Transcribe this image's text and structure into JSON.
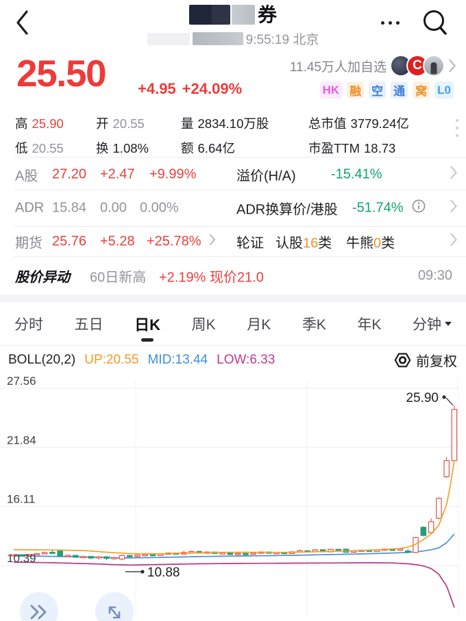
{
  "header": {
    "title_suffix": "券",
    "subtitle_time": "9:55:19 北京"
  },
  "quote": {
    "price": "25.50",
    "change": "+4.95",
    "change_pct": "+24.09%",
    "watchers": "11.45万人加自选",
    "avatar_letter": "C",
    "badges": [
      {
        "label": "HK",
        "fg": "#df5fe0",
        "bg": "#fbeafc"
      },
      {
        "label": "融",
        "fg": "#f0922e",
        "bg": "#fdf2e3"
      },
      {
        "label": "空",
        "fg": "#3f7fd6",
        "bg": "#e8f1fc"
      },
      {
        "label": "通",
        "fg": "#3f7fd6",
        "bg": "#e8f1fc"
      },
      {
        "label": "窝",
        "fg": "#f0922e",
        "bg": "#fdf2e3"
      },
      {
        "label": "L0",
        "fg": "#3fa0e8",
        "bg": "#e6f3fd"
      }
    ]
  },
  "stats": {
    "cells": [
      {
        "label": "高",
        "value": "25.90",
        "tone": "red"
      },
      {
        "label": "开",
        "value": "20.55",
        "tone": "gray"
      },
      {
        "label": "量",
        "value": "2834.10万股",
        "tone": "dark"
      },
      {
        "label": "总市值",
        "value": "3779.24亿",
        "tone": "dark"
      },
      {
        "label": "低",
        "value": "20.55",
        "tone": "gray"
      },
      {
        "label": "换",
        "value": "1.08%",
        "tone": "dark"
      },
      {
        "label": "额",
        "value": "6.64亿",
        "tone": "dark"
      },
      {
        "label": "市盈TTM",
        "value": "18.73",
        "tone": "dark"
      }
    ]
  },
  "rows": {
    "a_share": {
      "label": "A股",
      "price": "27.20",
      "change": "+2.47",
      "pct": "+9.99%",
      "right_label": "溢价(H/A)",
      "right_value": "-15.41%"
    },
    "adr": {
      "label": "ADR",
      "price": "15.84",
      "change": "0.00",
      "pct": "0.00%",
      "right_label": "ADR换算价/港股",
      "right_value": "-51.74%"
    },
    "futures": {
      "label": "期货",
      "price": "25.76",
      "change": "+5.28",
      "pct": "+25.78%",
      "w1": "轮证",
      "w2a": "认股",
      "w2n": "16",
      "w2b": "类",
      "w3a": "牛熊",
      "w3n": "0",
      "w3b": "类"
    },
    "alert": {
      "title": "股价异动",
      "tag": "60日新高",
      "detail": "+2.19% 现价21.0",
      "time": "09:30"
    }
  },
  "tabs": {
    "items": [
      "分时",
      "五日",
      "日K",
      "周K",
      "月K",
      "季K",
      "年K",
      "分钟"
    ],
    "active": 2,
    "dropdown_index": 7
  },
  "indicator": {
    "name": "BOLL(20,2)",
    "up": "UP:20.55",
    "mid": "MID:13.44",
    "low": "LOW:6.33",
    "adjust": "前复权"
  },
  "chart_data": {
    "type": "candlestick",
    "title": "日K candlestick with BOLL(20,2) bands",
    "y_ticks": [
      27.56,
      21.84,
      16.11,
      10.39
    ],
    "ylim": [
      6.0,
      27.56
    ],
    "boll_current": {
      "up": 20.55,
      "mid": 13.44,
      "low": 6.33
    },
    "high_label": {
      "text": "25.90",
      "price": 25.9
    },
    "low_label": {
      "text": "10.88",
      "price": 10.88,
      "bar": 14
    },
    "today": {
      "open": 20.55,
      "high": 25.9,
      "low": 20.55,
      "close": 25.5
    },
    "candles": [
      [
        11.38,
        11.44,
        11.5,
        11.33
      ],
      [
        11.44,
        11.36,
        11.48,
        11.3
      ],
      [
        11.36,
        11.47,
        11.52,
        11.31
      ],
      [
        11.47,
        11.55,
        11.62,
        11.42
      ],
      [
        11.55,
        11.64,
        11.74,
        11.5
      ],
      [
        11.68,
        11.65,
        11.92,
        11.52
      ],
      [
        11.9,
        11.3,
        11.95,
        11.24
      ],
      [
        11.3,
        11.38,
        11.44,
        11.24
      ],
      [
        11.38,
        11.2,
        11.42,
        11.12
      ],
      [
        11.2,
        11.27,
        11.34,
        11.1
      ],
      [
        11.27,
        11.12,
        11.3,
        11.0
      ],
      [
        11.12,
        11.24,
        11.3,
        10.95
      ],
      [
        11.24,
        11.08,
        11.28,
        10.92
      ],
      [
        11.08,
        11.16,
        11.24,
        10.96
      ],
      [
        11.02,
        11.36,
        11.42,
        10.88
      ],
      [
        11.36,
        11.26,
        11.44,
        11.08
      ],
      [
        11.26,
        11.4,
        11.48,
        11.18
      ],
      [
        11.4,
        11.46,
        11.54,
        11.34
      ],
      [
        11.46,
        11.36,
        11.5,
        11.28
      ],
      [
        11.36,
        11.5,
        11.56,
        11.32
      ],
      [
        11.5,
        11.6,
        11.68,
        11.45
      ],
      [
        11.6,
        11.5,
        11.64,
        11.43
      ],
      [
        11.5,
        11.66,
        11.8,
        11.46
      ],
      [
        11.66,
        11.76,
        11.82,
        11.6
      ],
      [
        11.76,
        11.6,
        11.8,
        11.54
      ],
      [
        11.6,
        11.7,
        11.76,
        11.55
      ],
      [
        11.7,
        11.56,
        11.74,
        11.5
      ],
      [
        11.56,
        11.62,
        11.68,
        11.5
      ],
      [
        11.62,
        11.46,
        11.66,
        11.4
      ],
      [
        11.46,
        11.56,
        11.62,
        11.42
      ],
      [
        11.56,
        11.5,
        11.6,
        11.44
      ],
      [
        11.5,
        11.6,
        11.66,
        11.46
      ],
      [
        11.6,
        11.7,
        11.76,
        11.55
      ],
      [
        11.7,
        11.6,
        11.74,
        11.54
      ],
      [
        11.6,
        11.66,
        11.72,
        11.56
      ],
      [
        11.66,
        11.56,
        11.7,
        11.5
      ],
      [
        11.56,
        11.72,
        11.78,
        11.52
      ],
      [
        11.72,
        11.82,
        11.96,
        11.66
      ],
      [
        11.82,
        11.76,
        11.88,
        11.7
      ],
      [
        11.76,
        11.92,
        11.98,
        11.72
      ],
      [
        11.92,
        11.72,
        11.96,
        11.66
      ],
      [
        11.72,
        11.96,
        12.02,
        11.68
      ],
      [
        11.96,
        11.86,
        12.0,
        11.8
      ],
      [
        11.98,
        11.68,
        12.02,
        11.62
      ],
      [
        11.68,
        11.8,
        11.86,
        11.62
      ],
      [
        11.8,
        11.88,
        11.94,
        11.74
      ],
      [
        11.88,
        11.76,
        11.92,
        11.7
      ],
      [
        11.76,
        11.9,
        11.96,
        11.72
      ],
      [
        11.9,
        11.98,
        12.04,
        11.84
      ],
      [
        11.98,
        11.88,
        12.02,
        11.82
      ],
      [
        11.88,
        12.0,
        12.1,
        11.8
      ],
      [
        11.8,
        11.7,
        12.0,
        11.58
      ],
      [
        11.65,
        13.1,
        13.18,
        11.58
      ],
      [
        14.1,
        13.3,
        14.18,
        13.22
      ],
      [
        13.58,
        14.64,
        14.97,
        13.5
      ],
      [
        14.97,
        16.9,
        17.0,
        14.88
      ],
      [
        19.0,
        20.55,
        20.9,
        18.85
      ],
      [
        20.55,
        25.5,
        25.9,
        20.55
      ]
    ],
    "boll_up": [
      [
        0,
        11.92
      ],
      [
        5,
        11.9
      ],
      [
        9,
        11.84
      ],
      [
        12,
        11.68
      ],
      [
        15,
        11.55
      ],
      [
        18,
        11.52
      ],
      [
        22,
        11.58
      ],
      [
        26,
        11.66
      ],
      [
        30,
        11.68
      ],
      [
        34,
        11.66
      ],
      [
        38,
        11.7
      ],
      [
        42,
        11.78
      ],
      [
        45,
        11.85
      ],
      [
        48,
        11.95
      ],
      [
        50,
        12.05
      ],
      [
        51,
        12.18
      ],
      [
        52,
        12.45
      ],
      [
        53,
        12.9
      ],
      [
        54,
        13.45
      ],
      [
        55,
        14.3
      ],
      [
        56,
        16.3
      ],
      [
        56.5,
        18.2
      ],
      [
        57,
        20.55
      ]
    ],
    "boll_mid": [
      [
        0,
        11.32
      ],
      [
        5,
        11.28
      ],
      [
        10,
        11.2
      ],
      [
        14,
        11.12
      ],
      [
        18,
        11.16
      ],
      [
        24,
        11.26
      ],
      [
        30,
        11.32
      ],
      [
        36,
        11.38
      ],
      [
        40,
        11.44
      ],
      [
        44,
        11.5
      ],
      [
        48,
        11.58
      ],
      [
        51,
        11.66
      ],
      [
        53,
        11.8
      ],
      [
        54,
        11.92
      ],
      [
        55,
        12.1
      ],
      [
        56,
        12.6
      ],
      [
        57,
        13.44
      ]
    ],
    "boll_low": [
      [
        0,
        10.72
      ],
      [
        5,
        10.66
      ],
      [
        10,
        10.56
      ],
      [
        13,
        10.48
      ],
      [
        15,
        10.44
      ],
      [
        18,
        10.48
      ],
      [
        24,
        10.56
      ],
      [
        30,
        10.6
      ],
      [
        36,
        10.62
      ],
      [
        42,
        10.64
      ],
      [
        46,
        10.66
      ],
      [
        49,
        10.64
      ],
      [
        51,
        10.56
      ],
      [
        52,
        10.48
      ],
      [
        53,
        10.35
      ],
      [
        54,
        10.1
      ],
      [
        55,
        9.55
      ],
      [
        56,
        8.4
      ],
      [
        56.5,
        7.4
      ],
      [
        57,
        6.33
      ]
    ],
    "colors": {
      "up": "#df544d",
      "down": "#289c79",
      "boll_up": "#f5a125",
      "boll_mid": "#4a90d9",
      "boll_low": "#b53688"
    }
  }
}
